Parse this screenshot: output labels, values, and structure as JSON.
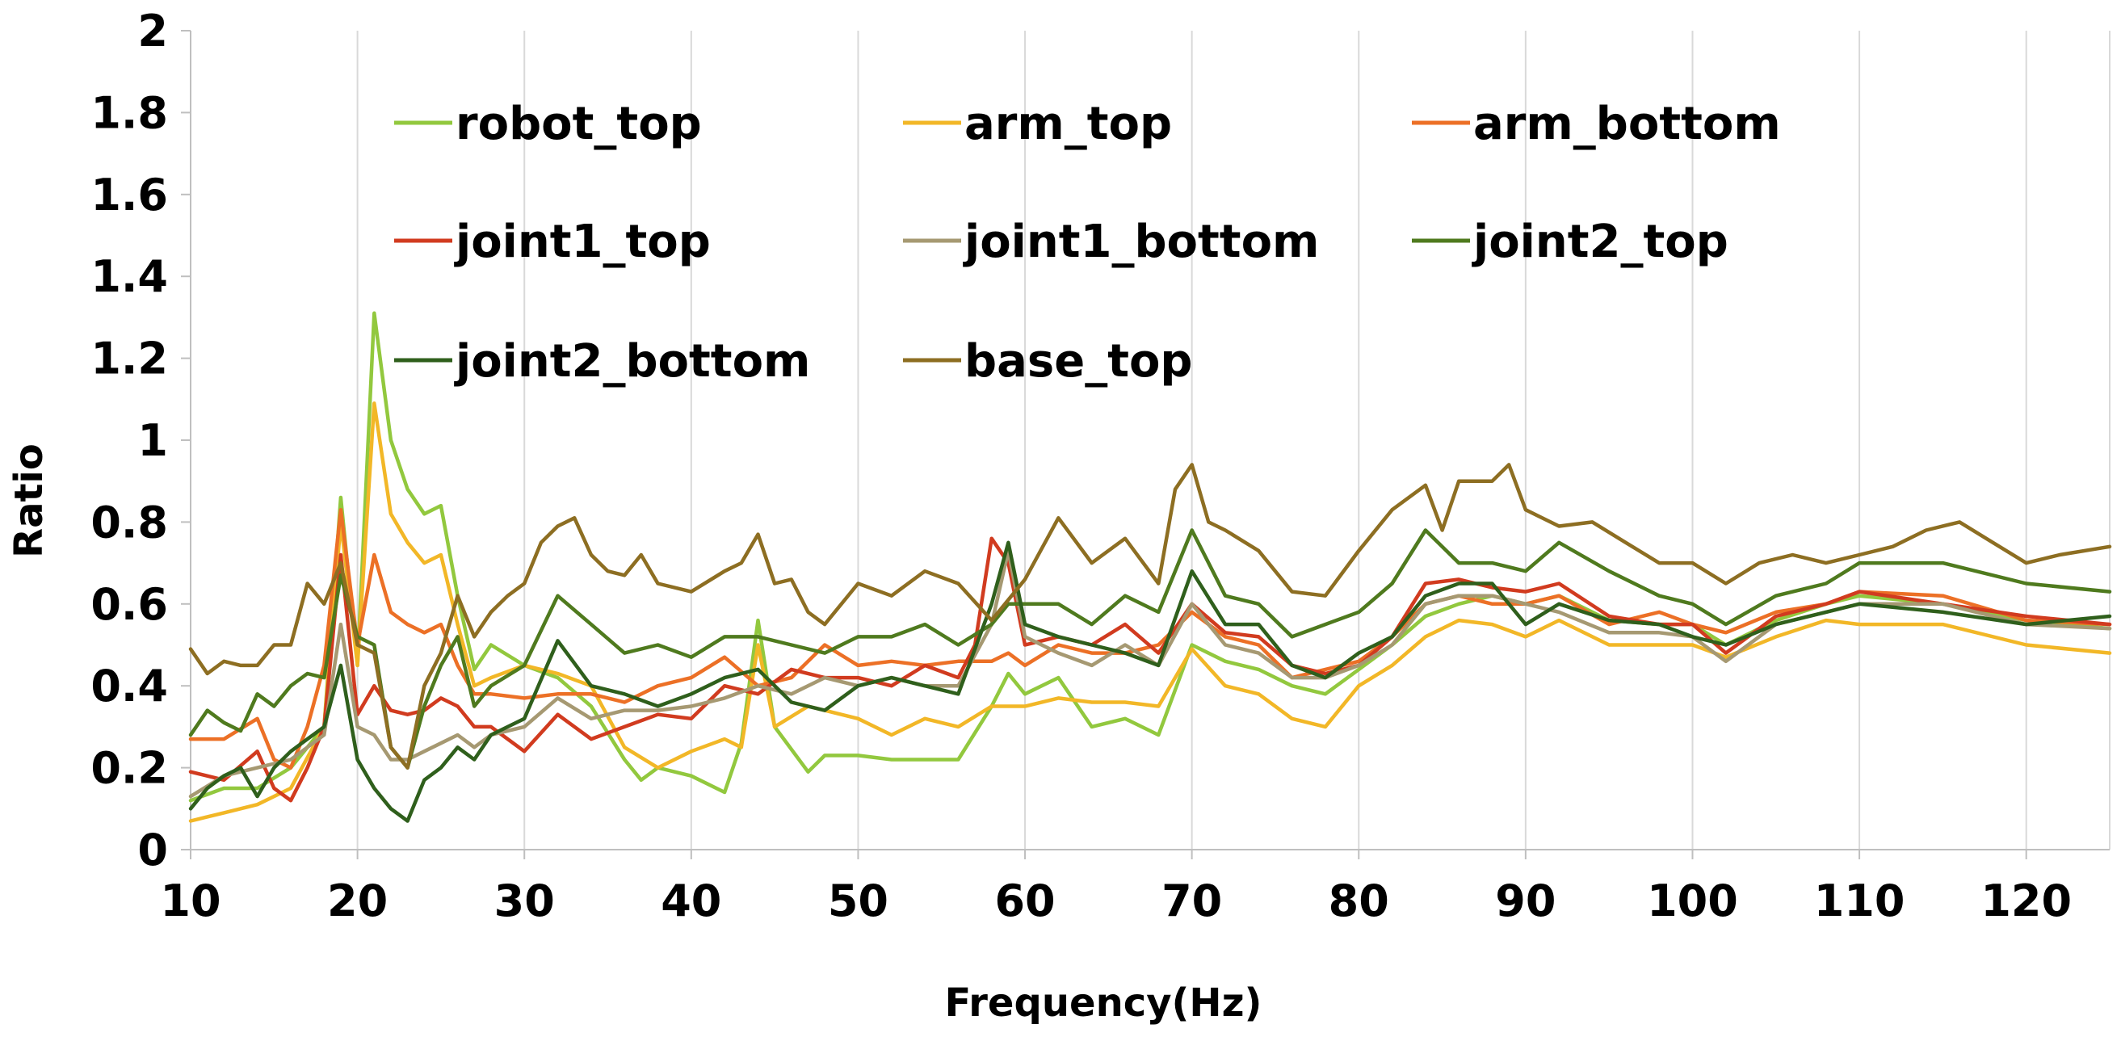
{
  "chart_data": {
    "type": "line",
    "title": "",
    "xlabel": "Frequency(Hz)",
    "ylabel": "Ratio",
    "xlim": [
      10,
      125
    ],
    "ylim": [
      0,
      2
    ],
    "x_ticks": [
      10,
      20,
      30,
      40,
      50,
      60,
      70,
      80,
      90,
      100,
      110,
      120
    ],
    "y_ticks": [
      0,
      0.2,
      0.4,
      0.6,
      0.8,
      1,
      1.2,
      1.4,
      1.6,
      1.8,
      2
    ],
    "x_tick_labels": [
      "10",
      "20",
      "30",
      "40",
      "50",
      "60",
      "70",
      "80",
      "90",
      "100",
      "110",
      "120"
    ],
    "y_tick_labels": [
      "0",
      "0.2",
      "0.4",
      "0.6",
      "0.8",
      "1",
      "1.2",
      "1.4",
      "1.6",
      "1.8",
      "2"
    ],
    "grid": {
      "vertical": true,
      "horizontal": false
    },
    "legend_position": "top-left inside, 3 columns",
    "series": [
      {
        "name": "robot_top",
        "color": "#92c83e",
        "x": [
          10,
          12,
          14,
          16,
          18,
          19,
          20,
          21,
          22,
          23,
          24,
          25,
          26,
          27,
          28,
          30,
          32,
          34,
          36,
          37,
          38,
          40,
          42,
          43,
          44,
          45,
          47,
          48,
          50,
          52,
          54,
          56,
          58,
          59,
          60,
          62,
          64,
          66,
          68,
          70,
          72,
          74,
          76,
          78,
          80,
          82,
          84,
          86,
          88,
          90,
          92,
          95,
          98,
          100,
          102,
          105,
          108,
          110,
          115,
          120,
          125
        ],
        "y": [
          0.12,
          0.15,
          0.15,
          0.2,
          0.3,
          0.86,
          0.45,
          1.31,
          1.0,
          0.88,
          0.82,
          0.84,
          0.62,
          0.44,
          0.5,
          0.45,
          0.42,
          0.35,
          0.22,
          0.17,
          0.2,
          0.18,
          0.14,
          0.26,
          0.56,
          0.3,
          0.19,
          0.23,
          0.23,
          0.22,
          0.22,
          0.22,
          0.35,
          0.43,
          0.38,
          0.42,
          0.3,
          0.32,
          0.28,
          0.5,
          0.46,
          0.44,
          0.4,
          0.38,
          0.44,
          0.5,
          0.57,
          0.6,
          0.62,
          0.6,
          0.62,
          0.56,
          0.55,
          0.55,
          0.5,
          0.56,
          0.6,
          0.62,
          0.6,
          0.56,
          0.54
        ]
      },
      {
        "name": "arm_top",
        "color": "#f2b727",
        "x": [
          10,
          12,
          14,
          16,
          18,
          19,
          20,
          21,
          22,
          23,
          24,
          25,
          26,
          27,
          28,
          30,
          32,
          34,
          36,
          38,
          40,
          42,
          43,
          44,
          45,
          47,
          50,
          52,
          54,
          56,
          58,
          60,
          62,
          64,
          66,
          68,
          70,
          72,
          74,
          76,
          78,
          80,
          82,
          84,
          86,
          88,
          90,
          92,
          95,
          98,
          100,
          102,
          105,
          108,
          110,
          115,
          120,
          125
        ],
        "y": [
          0.07,
          0.09,
          0.11,
          0.15,
          0.3,
          0.8,
          0.45,
          1.09,
          0.82,
          0.75,
          0.7,
          0.72,
          0.55,
          0.4,
          0.42,
          0.45,
          0.43,
          0.4,
          0.25,
          0.2,
          0.24,
          0.27,
          0.25,
          0.5,
          0.3,
          0.35,
          0.32,
          0.28,
          0.32,
          0.3,
          0.35,
          0.35,
          0.37,
          0.36,
          0.36,
          0.35,
          0.49,
          0.4,
          0.38,
          0.32,
          0.3,
          0.4,
          0.45,
          0.52,
          0.56,
          0.55,
          0.52,
          0.56,
          0.5,
          0.5,
          0.5,
          0.47,
          0.52,
          0.56,
          0.55,
          0.55,
          0.5,
          0.48
        ]
      },
      {
        "name": "arm_bottom",
        "color": "#ec7026",
        "x": [
          10,
          12,
          14,
          15,
          16,
          17,
          18,
          19,
          20,
          21,
          22,
          23,
          24,
          25,
          26,
          27,
          28,
          30,
          32,
          34,
          36,
          38,
          40,
          42,
          44,
          46,
          48,
          50,
          52,
          54,
          56,
          58,
          59,
          60,
          62,
          64,
          66,
          68,
          70,
          72,
          74,
          76,
          78,
          80,
          82,
          84,
          86,
          88,
          90,
          92,
          95,
          98,
          100,
          102,
          105,
          108,
          110,
          115,
          120,
          125
        ],
        "y": [
          0.27,
          0.27,
          0.32,
          0.22,
          0.2,
          0.3,
          0.45,
          0.83,
          0.5,
          0.72,
          0.58,
          0.55,
          0.53,
          0.55,
          0.45,
          0.38,
          0.38,
          0.37,
          0.38,
          0.38,
          0.36,
          0.4,
          0.42,
          0.47,
          0.4,
          0.42,
          0.5,
          0.45,
          0.46,
          0.45,
          0.46,
          0.46,
          0.48,
          0.45,
          0.5,
          0.48,
          0.48,
          0.5,
          0.58,
          0.52,
          0.5,
          0.42,
          0.44,
          0.46,
          0.52,
          0.6,
          0.62,
          0.6,
          0.6,
          0.62,
          0.55,
          0.58,
          0.55,
          0.53,
          0.58,
          0.6,
          0.63,
          0.62,
          0.56,
          0.55
        ]
      },
      {
        "name": "joint1_top",
        "color": "#d13b1f",
        "x": [
          10,
          12,
          14,
          15,
          16,
          17,
          18,
          19,
          20,
          21,
          22,
          23,
          24,
          25,
          26,
          27,
          28,
          30,
          32,
          34,
          36,
          38,
          40,
          42,
          44,
          46,
          48,
          50,
          52,
          54,
          56,
          57,
          58,
          59,
          60,
          62,
          64,
          66,
          68,
          70,
          72,
          74,
          76,
          78,
          80,
          82,
          84,
          86,
          88,
          90,
          92,
          95,
          98,
          100,
          102,
          105,
          108,
          110,
          115,
          120,
          125
        ],
        "y": [
          0.19,
          0.17,
          0.24,
          0.15,
          0.12,
          0.2,
          0.3,
          0.72,
          0.33,
          0.4,
          0.34,
          0.33,
          0.34,
          0.37,
          0.35,
          0.3,
          0.3,
          0.24,
          0.33,
          0.27,
          0.3,
          0.33,
          0.32,
          0.4,
          0.38,
          0.44,
          0.42,
          0.42,
          0.4,
          0.45,
          0.42,
          0.5,
          0.76,
          0.7,
          0.5,
          0.52,
          0.5,
          0.55,
          0.48,
          0.6,
          0.53,
          0.52,
          0.45,
          0.43,
          0.45,
          0.52,
          0.65,
          0.66,
          0.64,
          0.63,
          0.65,
          0.57,
          0.55,
          0.55,
          0.48,
          0.57,
          0.6,
          0.63,
          0.6,
          0.57,
          0.55
        ]
      },
      {
        "name": "joint1_bottom",
        "color": "#a69972",
        "x": [
          10,
          12,
          14,
          16,
          18,
          19,
          20,
          21,
          22,
          23,
          24,
          25,
          26,
          27,
          28,
          30,
          32,
          34,
          36,
          38,
          40,
          42,
          44,
          46,
          48,
          50,
          52,
          54,
          56,
          58,
          59,
          60,
          62,
          64,
          66,
          68,
          70,
          72,
          74,
          76,
          78,
          80,
          82,
          84,
          86,
          88,
          90,
          92,
          95,
          98,
          100,
          102,
          105,
          108,
          110,
          115,
          120,
          125
        ],
        "y": [
          0.13,
          0.18,
          0.2,
          0.22,
          0.28,
          0.55,
          0.3,
          0.28,
          0.22,
          0.22,
          0.24,
          0.26,
          0.28,
          0.25,
          0.28,
          0.3,
          0.37,
          0.32,
          0.34,
          0.34,
          0.35,
          0.37,
          0.4,
          0.38,
          0.42,
          0.4,
          0.42,
          0.4,
          0.4,
          0.55,
          0.73,
          0.52,
          0.48,
          0.45,
          0.5,
          0.45,
          0.6,
          0.5,
          0.48,
          0.42,
          0.42,
          0.45,
          0.5,
          0.6,
          0.62,
          0.62,
          0.6,
          0.58,
          0.53,
          0.53,
          0.52,
          0.46,
          0.55,
          0.58,
          0.6,
          0.6,
          0.55,
          0.54
        ]
      },
      {
        "name": "joint2_top",
        "color": "#4f7a1e",
        "x": [
          10,
          11,
          12,
          13,
          14,
          15,
          16,
          17,
          18,
          19,
          20,
          21,
          22,
          23,
          24,
          25,
          26,
          27,
          28,
          30,
          32,
          34,
          36,
          38,
          40,
          42,
          44,
          46,
          48,
          50,
          52,
          54,
          56,
          58,
          59,
          60,
          62,
          64,
          66,
          68,
          70,
          72,
          74,
          76,
          78,
          80,
          82,
          84,
          86,
          88,
          90,
          92,
          95,
          98,
          100,
          102,
          105,
          108,
          110,
          115,
          120,
          125
        ],
        "y": [
          0.28,
          0.34,
          0.31,
          0.29,
          0.38,
          0.35,
          0.4,
          0.43,
          0.42,
          0.67,
          0.52,
          0.5,
          0.25,
          0.2,
          0.35,
          0.45,
          0.52,
          0.35,
          0.4,
          0.45,
          0.62,
          0.55,
          0.48,
          0.5,
          0.47,
          0.52,
          0.52,
          0.5,
          0.48,
          0.52,
          0.52,
          0.55,
          0.5,
          0.55,
          0.6,
          0.6,
          0.6,
          0.55,
          0.62,
          0.58,
          0.78,
          0.62,
          0.6,
          0.52,
          0.55,
          0.58,
          0.65,
          0.78,
          0.7,
          0.7,
          0.68,
          0.75,
          0.68,
          0.62,
          0.6,
          0.55,
          0.62,
          0.65,
          0.7,
          0.7,
          0.65,
          0.63
        ]
      },
      {
        "name": "joint2_bottom",
        "color": "#2f5f1c",
        "x": [
          10,
          11,
          12,
          13,
          14,
          15,
          16,
          17,
          18,
          19,
          20,
          21,
          22,
          23,
          24,
          25,
          26,
          27,
          28,
          30,
          32,
          34,
          36,
          38,
          40,
          42,
          44,
          46,
          48,
          50,
          52,
          54,
          56,
          58,
          59,
          60,
          62,
          64,
          66,
          68,
          70,
          72,
          74,
          76,
          78,
          80,
          82,
          84,
          86,
          88,
          90,
          92,
          95,
          98,
          100,
          102,
          105,
          108,
          110,
          115,
          120,
          125
        ],
        "y": [
          0.1,
          0.15,
          0.18,
          0.2,
          0.13,
          0.2,
          0.24,
          0.27,
          0.3,
          0.45,
          0.22,
          0.15,
          0.1,
          0.07,
          0.17,
          0.2,
          0.25,
          0.22,
          0.28,
          0.32,
          0.51,
          0.4,
          0.38,
          0.35,
          0.38,
          0.42,
          0.44,
          0.36,
          0.34,
          0.4,
          0.42,
          0.4,
          0.38,
          0.6,
          0.75,
          0.55,
          0.52,
          0.5,
          0.48,
          0.45,
          0.68,
          0.55,
          0.55,
          0.45,
          0.42,
          0.48,
          0.52,
          0.62,
          0.65,
          0.65,
          0.55,
          0.6,
          0.56,
          0.55,
          0.52,
          0.5,
          0.55,
          0.58,
          0.6,
          0.58,
          0.55,
          0.57
        ]
      },
      {
        "name": "base_top",
        "color": "#8d6e22",
        "x": [
          10,
          11,
          12,
          13,
          14,
          15,
          16,
          17,
          18,
          19,
          20,
          21,
          22,
          23,
          24,
          25,
          26,
          27,
          28,
          29,
          30,
          31,
          32,
          33,
          34,
          35,
          36,
          37,
          38,
          40,
          42,
          43,
          44,
          45,
          46,
          47,
          48,
          50,
          52,
          54,
          56,
          58,
          60,
          62,
          64,
          66,
          68,
          69,
          70,
          71,
          72,
          74,
          76,
          78,
          80,
          82,
          84,
          85,
          86,
          88,
          89,
          90,
          92,
          94,
          96,
          98,
          100,
          102,
          104,
          106,
          108,
          110,
          112,
          114,
          116,
          118,
          120,
          122,
          125
        ],
        "y": [
          0.49,
          0.43,
          0.46,
          0.45,
          0.45,
          0.5,
          0.5,
          0.65,
          0.6,
          0.7,
          0.5,
          0.48,
          0.25,
          0.2,
          0.4,
          0.48,
          0.62,
          0.52,
          0.58,
          0.62,
          0.65,
          0.75,
          0.79,
          0.81,
          0.72,
          0.68,
          0.67,
          0.72,
          0.65,
          0.63,
          0.68,
          0.7,
          0.77,
          0.65,
          0.66,
          0.58,
          0.55,
          0.65,
          0.62,
          0.68,
          0.65,
          0.56,
          0.66,
          0.81,
          0.7,
          0.76,
          0.65,
          0.88,
          0.94,
          0.8,
          0.78,
          0.73,
          0.63,
          0.62,
          0.73,
          0.83,
          0.89,
          0.78,
          0.9,
          0.9,
          0.94,
          0.83,
          0.79,
          0.8,
          0.75,
          0.7,
          0.7,
          0.65,
          0.7,
          0.72,
          0.7,
          0.72,
          0.74,
          0.78,
          0.8,
          0.75,
          0.7,
          0.72,
          0.74
        ]
      }
    ]
  }
}
